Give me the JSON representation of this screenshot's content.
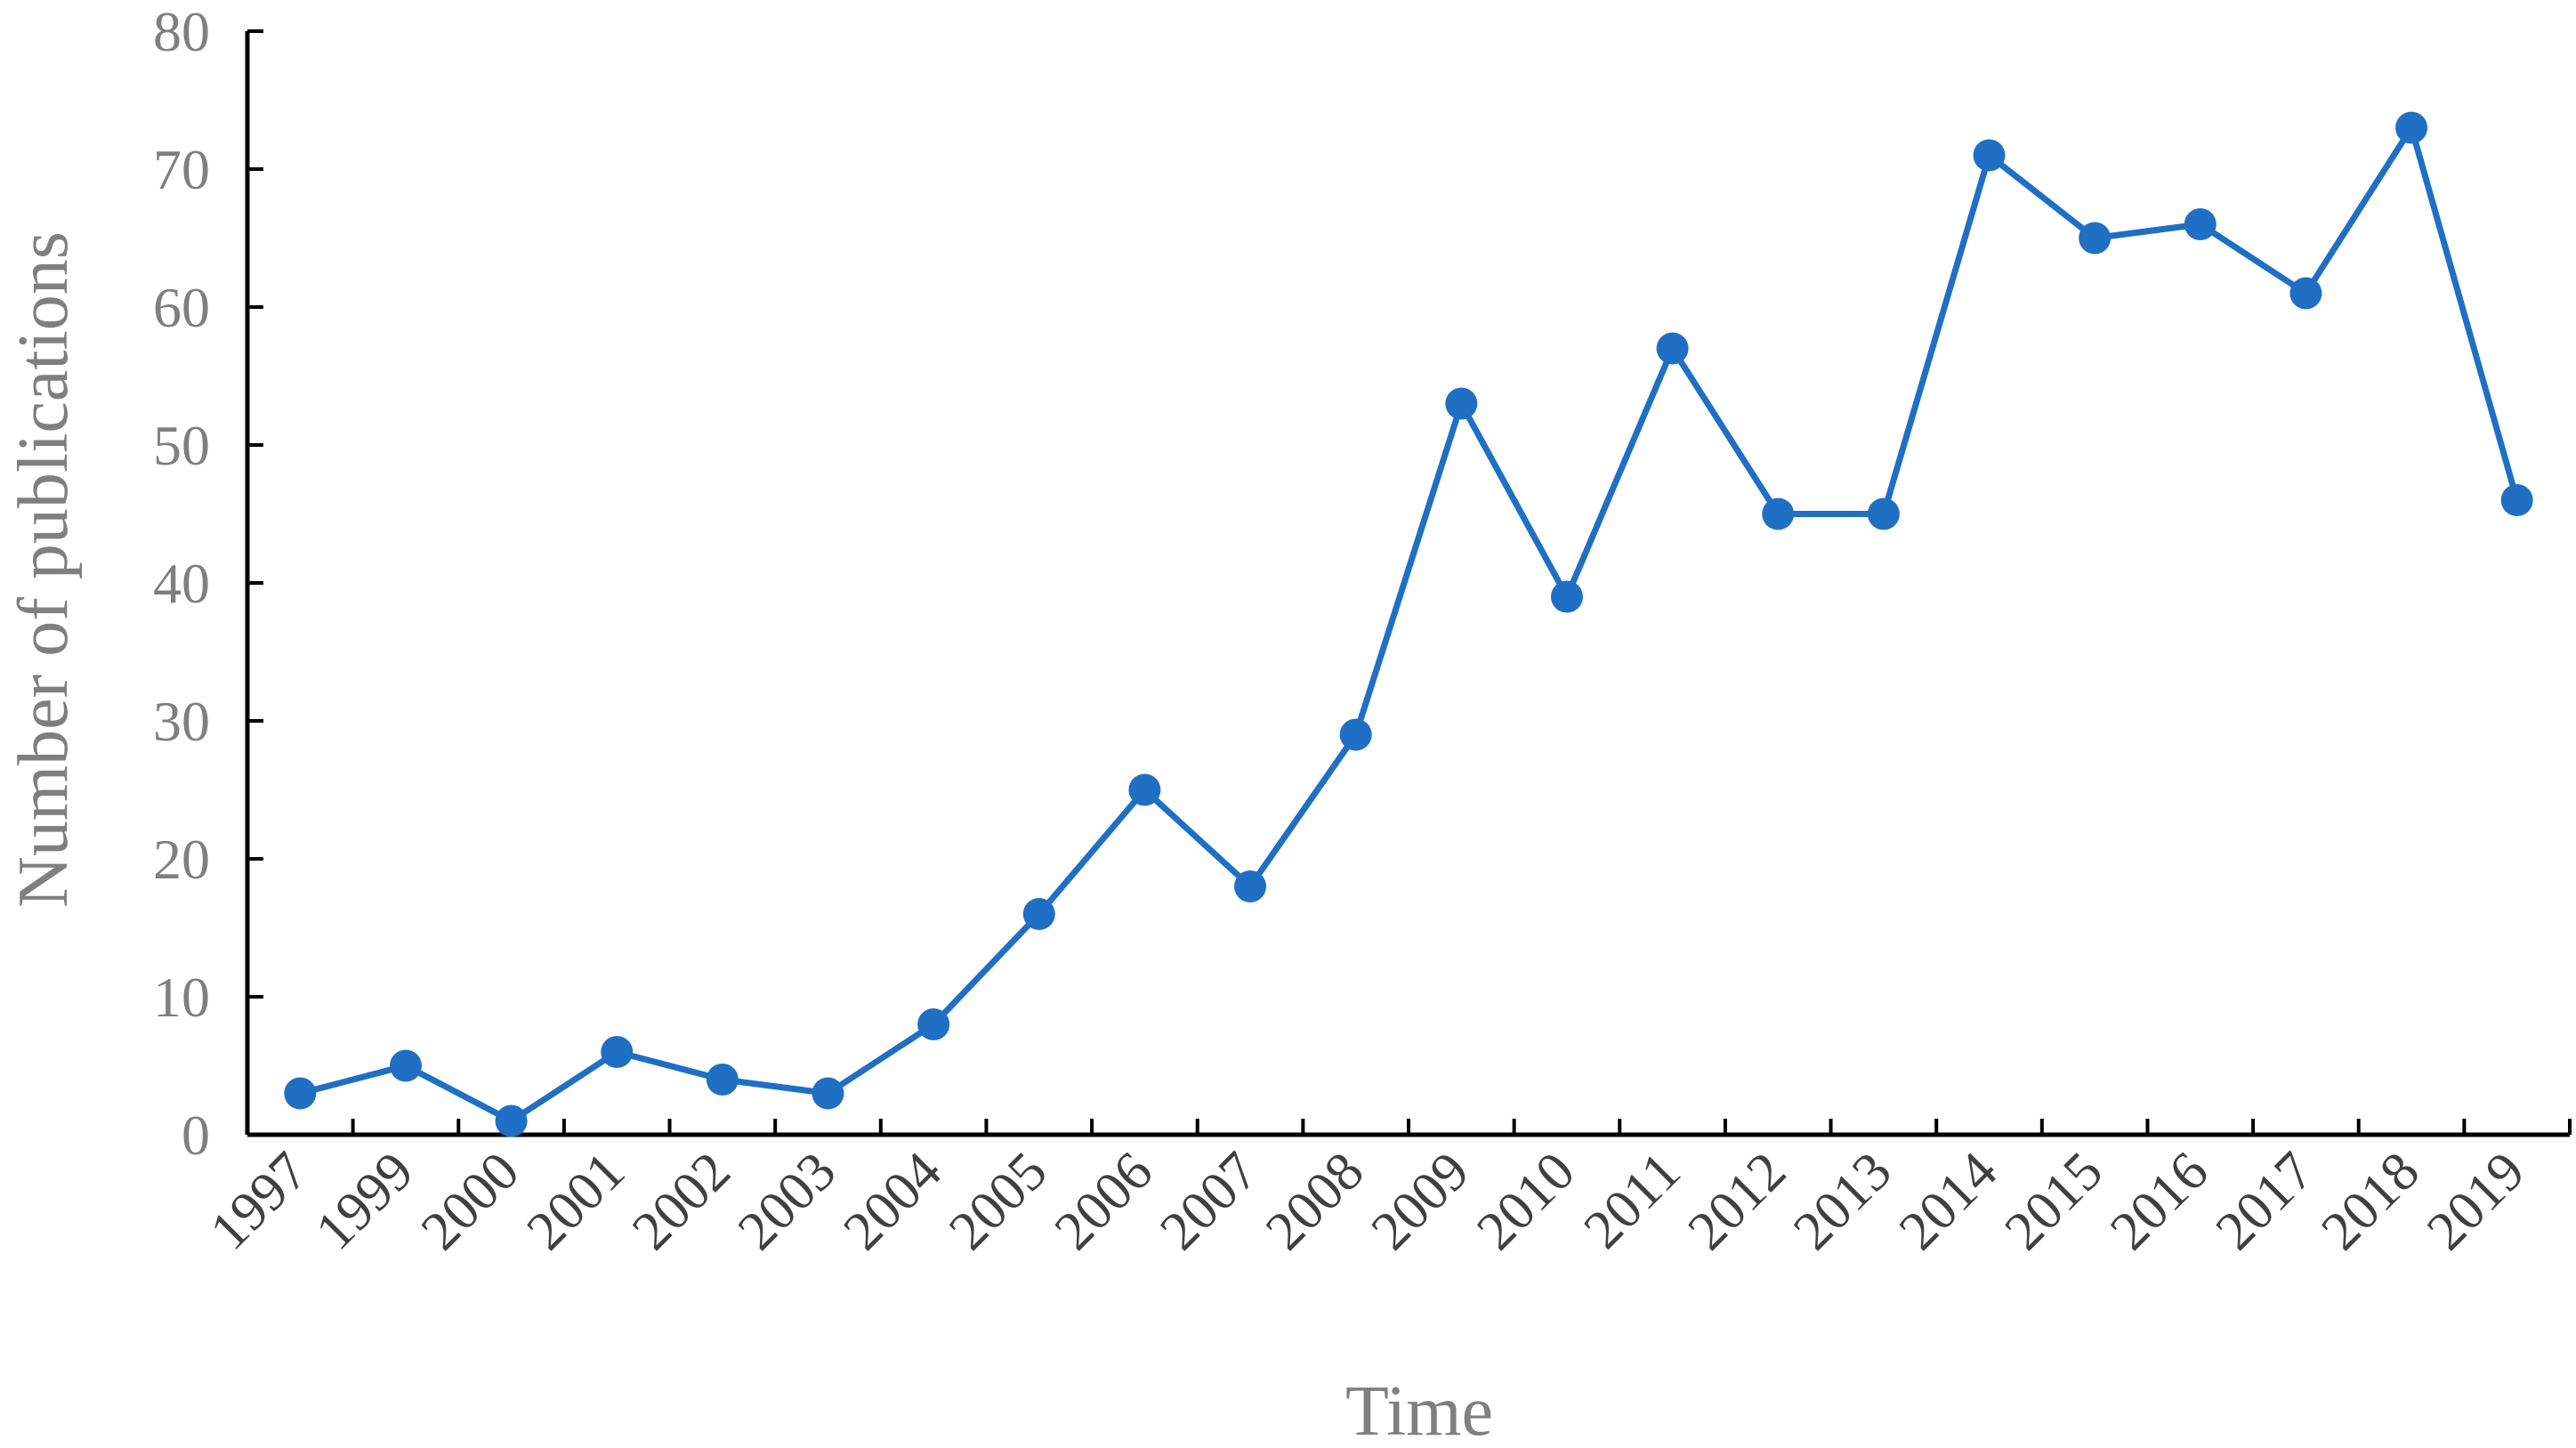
{
  "chart_data": {
    "type": "line",
    "title": "",
    "xlabel": "Time",
    "ylabel": "Number of publications",
    "ylim": [
      0,
      80
    ],
    "yticks": [
      "0",
      "10",
      "20",
      "30",
      "40",
      "50",
      "60",
      "70",
      "80"
    ],
    "grid": false,
    "legend": "none",
    "categories": [
      "1997",
      "1999",
      "2000",
      "2001",
      "2002",
      "2003",
      "2004",
      "2005",
      "2006",
      "2007",
      "2008",
      "2009",
      "2010",
      "2011",
      "2012",
      "2013",
      "2014",
      "2015",
      "2016",
      "2017",
      "2018",
      "2019"
    ],
    "series": [
      {
        "color": "#1f6fc4",
        "values": [
          3,
          5,
          1,
          6,
          4,
          3,
          8,
          16,
          25,
          18,
          29,
          53,
          39,
          57,
          45,
          45,
          71,
          65,
          66,
          61,
          73,
          46
        ]
      }
    ]
  }
}
